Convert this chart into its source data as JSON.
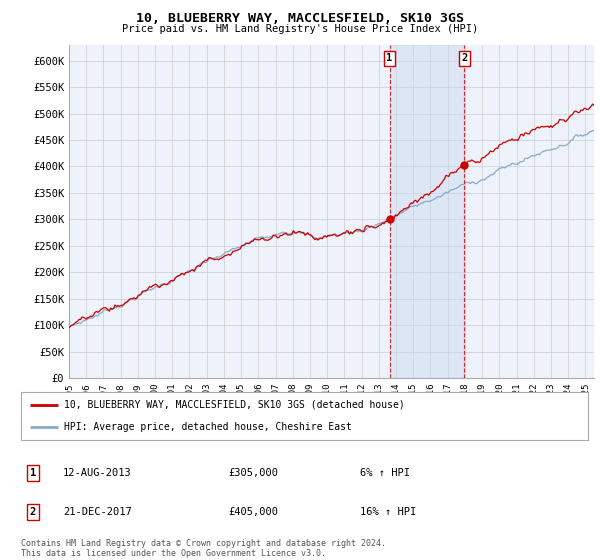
{
  "title": "10, BLUEBERRY WAY, MACCLESFIELD, SK10 3GS",
  "subtitle": "Price paid vs. HM Land Registry's House Price Index (HPI)",
  "ylabel_ticks": [
    "£0",
    "£50K",
    "£100K",
    "£150K",
    "£200K",
    "£250K",
    "£300K",
    "£350K",
    "£400K",
    "£450K",
    "£500K",
    "£550K",
    "£600K"
  ],
  "ytick_values": [
    0,
    50000,
    100000,
    150000,
    200000,
    250000,
    300000,
    350000,
    400000,
    450000,
    500000,
    550000,
    600000
  ],
  "ylim": [
    0,
    630000
  ],
  "sale1_date": "12-AUG-2013",
  "sale1_price": 305000,
  "sale1_hpi": "6% ↑ HPI",
  "sale2_date": "21-DEC-2017",
  "sale2_price": 405000,
  "sale2_hpi": "16% ↑ HPI",
  "legend_line1": "10, BLUEBERRY WAY, MACCLESFIELD, SK10 3GS (detached house)",
  "legend_line2": "HPI: Average price, detached house, Cheshire East",
  "footnote": "Contains HM Land Registry data © Crown copyright and database right 2024.\nThis data is licensed under the Open Government Licence v3.0.",
  "line_color_red": "#cc0000",
  "line_color_blue": "#88aacc",
  "background_plot": "#eef2fa",
  "background_fig": "#ffffff",
  "grid_color": "#cccccc",
  "vline_color": "#cc0000",
  "marker_color_red": "#cc0000",
  "sale1_x": 2013.62,
  "sale2_x": 2017.97,
  "xlim_left": 1995.0,
  "xlim_right": 2025.5
}
